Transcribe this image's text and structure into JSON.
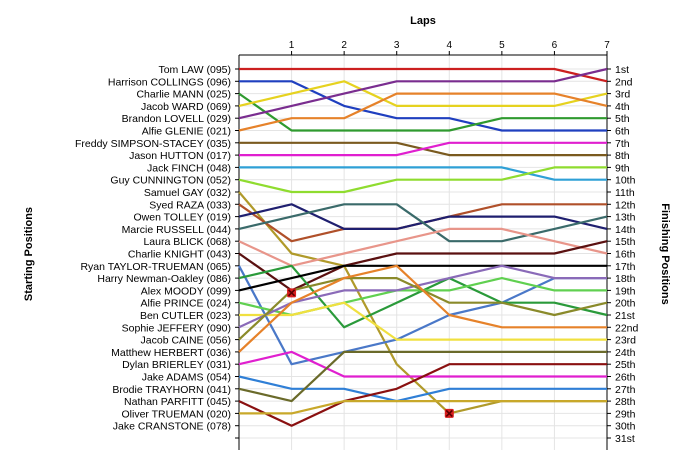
{
  "chart_data": {
    "type": "line",
    "title": "",
    "xlabel": "Laps",
    "ylabel_left": "Starting Positions",
    "ylabel_right": "Finishing Positions",
    "x": [
      0,
      1,
      2,
      3,
      4,
      5,
      6,
      7
    ],
    "x_tick_labels": [
      "1",
      "2",
      "3",
      "4",
      "5",
      "6",
      "7"
    ],
    "ylim": [
      1,
      31
    ],
    "finishing_labels": [
      "1st",
      "2nd",
      "3rd",
      "4th",
      "5th",
      "6th",
      "7th",
      "8th",
      "9th",
      "10th",
      "11th",
      "12th",
      "13th",
      "14th",
      "15th",
      "16th",
      "17th",
      "18th",
      "19th",
      "20th",
      "21st",
      "22nd",
      "23rd",
      "24th",
      "25th",
      "26th",
      "27th",
      "28th",
      "29th",
      "30th",
      "31st"
    ],
    "grid": true,
    "series": [
      {
        "name": "Tom LAW (095)",
        "color": "#cc1f1f",
        "values": [
          1,
          1,
          1,
          1,
          1,
          1,
          1,
          2
        ]
      },
      {
        "name": "Harrison COLLINGS (096)",
        "color": "#1f3fbf",
        "values": [
          2,
          2,
          4,
          5,
          5,
          6,
          6,
          6
        ]
      },
      {
        "name": "Charlie MANN (025)",
        "color": "#2f9a2f",
        "values": [
          3,
          6,
          6,
          6,
          6,
          5,
          5,
          5
        ]
      },
      {
        "name": "Jacob WARD (069)",
        "color": "#e6d21f",
        "values": [
          4,
          3,
          2,
          4,
          4,
          4,
          4,
          3
        ]
      },
      {
        "name": "Brandon LOVELL (029)",
        "color": "#7a2d8f",
        "values": [
          5,
          4,
          3,
          2,
          2,
          2,
          2,
          1
        ]
      },
      {
        "name": "Alfie GLENIE (021)",
        "color": "#e6822a",
        "values": [
          6,
          5,
          5,
          3,
          3,
          3,
          3,
          4
        ]
      },
      {
        "name": "Freddy SIMPSON-STACEY (035)",
        "color": "#7a5a1f",
        "values": [
          7,
          7,
          7,
          7,
          8,
          8,
          8,
          8
        ]
      },
      {
        "name": "Jason HUTTON (017)",
        "color": "#e01fcf",
        "values": [
          8,
          8,
          8,
          8,
          7,
          7,
          7,
          7
        ]
      },
      {
        "name": "Jack FINCH (048)",
        "color": "#2fa0d6",
        "values": [
          9,
          9,
          9,
          9,
          9,
          9,
          10,
          10
        ]
      },
      {
        "name": "Guy CUNNINGTON (052)",
        "color": "#8fdc2f",
        "values": [
          10,
          11,
          11,
          10,
          10,
          10,
          9,
          9
        ]
      },
      {
        "name": "Samuel GAY (032)",
        "color": "#b09a2a",
        "values": [
          11,
          16,
          17,
          25,
          29,
          28,
          28,
          28
        ]
      },
      {
        "name": "Syed RAZA (033)",
        "color": "#b0502a",
        "values": [
          12,
          15,
          14,
          14,
          13,
          12,
          12,
          12
        ]
      },
      {
        "name": "Owen TOLLEY (019)",
        "color": "#1f1f6f",
        "values": [
          13,
          12,
          14,
          14,
          13,
          13,
          13,
          14
        ]
      },
      {
        "name": "Marcie RUSSELL (044)",
        "color": "#3a6a6a",
        "values": [
          14,
          13,
          12,
          12,
          15,
          15,
          14,
          13
        ]
      },
      {
        "name": "Laura BLICK (068)",
        "color": "#e8958a",
        "values": [
          15,
          17,
          16,
          15,
          14,
          14,
          15,
          16
        ]
      },
      {
        "name": "Charlie KNIGHT (043)",
        "color": "#5a1010",
        "values": [
          16,
          19,
          17,
          16,
          16,
          16,
          16,
          15
        ]
      },
      {
        "name": "Ryan TAYLOR-TRUEMAN (065)",
        "color": "#4a78c8",
        "values": [
          17,
          25,
          24,
          23,
          21,
          20,
          18,
          18
        ]
      },
      {
        "name": "Harry Newman-Oakley (086)",
        "color": "#2a9a3a",
        "values": [
          18,
          17,
          22,
          20,
          18,
          20,
          20,
          21
        ]
      },
      {
        "name": "Alex MOODY (099)",
        "color": "#000000",
        "values": [
          19,
          18,
          17,
          17,
          17,
          17,
          17,
          17
        ]
      },
      {
        "name": "Alfie PRINCE (024)",
        "color": "#60d050",
        "values": [
          20,
          21,
          20,
          19,
          19,
          18,
          19,
          19
        ]
      },
      {
        "name": "Ben CUTLER (023)",
        "color": "#f0e040",
        "values": [
          21,
          21,
          20,
          23,
          23,
          23,
          23,
          23
        ]
      },
      {
        "name": "Sophie JEFFERY (090)",
        "color": "#8a6ab8",
        "values": [
          22,
          20,
          19,
          19,
          18,
          17,
          18,
          18
        ]
      },
      {
        "name": "Jacob CAINE (056)",
        "color": "#8a8a2a",
        "values": [
          23,
          19,
          18,
          18,
          20,
          20,
          21,
          20
        ]
      },
      {
        "name": "Matthew HERBERT (036)",
        "color": "#e6822a",
        "values": [
          24,
          20,
          18,
          17,
          21,
          22,
          22,
          22
        ]
      },
      {
        "name": "Dylan BRIERLEY (031)",
        "color": "#e01fcf",
        "values": [
          25,
          24,
          26,
          26,
          26,
          26,
          26,
          26
        ]
      },
      {
        "name": "Jake ADAMS (054)",
        "color": "#2f7fd6",
        "values": [
          26,
          27,
          27,
          28,
          27,
          27,
          27,
          27
        ]
      },
      {
        "name": "Brodie TRAYHORN (041)",
        "color": "#6a6a2a",
        "values": [
          27,
          28,
          24,
          24,
          24,
          24,
          24,
          24
        ]
      },
      {
        "name": "Nathan PARFITT (045)",
        "color": "#8a1010",
        "values": [
          28,
          30,
          28,
          27,
          25,
          25,
          25,
          25
        ]
      },
      {
        "name": "Oliver TRUEMAN (020)",
        "color": "#c8a82a",
        "values": [
          29,
          29,
          28,
          28,
          28,
          28,
          28,
          28
        ]
      },
      {
        "name": "Jake CRANSTONE (078)",
        "color": "#888888",
        "values": [
          30,
          null,
          null,
          null,
          null,
          null,
          null,
          null
        ]
      }
    ],
    "retirements": [
      {
        "series": "Harry Newman-Oakley (086)",
        "lap": 1,
        "position": 19.2
      },
      {
        "series": "Samuel GAY (032)",
        "lap": 4,
        "position": 29
      }
    ]
  }
}
